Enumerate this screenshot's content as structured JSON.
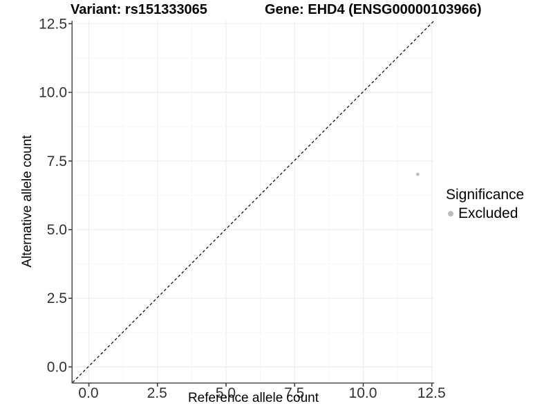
{
  "chart_data": {
    "type": "scatter",
    "title_variant": "Variant: rs151333065",
    "title_gene": "Gene: EHD4 (ENSG00000103966)",
    "xlabel": "Reference allele count",
    "ylabel": "Alternative allele count",
    "x_tick_labels": [
      "0.0",
      "2.5",
      "5.0",
      "7.5",
      "10.0",
      "12.5"
    ],
    "y_tick_labels": [
      "0.0",
      "2.5",
      "5.0",
      "7.5",
      "10.0",
      "12.5"
    ],
    "tick_values": [
      0,
      2.5,
      5,
      7.5,
      10,
      12.5
    ],
    "minor_tick_values": [
      1.25,
      3.75,
      6.25,
      8.75,
      11.25
    ],
    "xlim": [
      -0.58,
      12.595
    ],
    "ylim": [
      -0.58,
      12.595
    ],
    "grid": true,
    "legend_position": "right",
    "reference_line": {
      "type": "identity y=x",
      "style": "dashed",
      "color": "#000000"
    },
    "points": [
      {
        "x": 12,
        "y": 7,
        "significance": "Excluded"
      }
    ],
    "legend": {
      "title": "Significance",
      "entries": [
        {
          "label": "Excluded",
          "color": "#bcbcbc"
        }
      ]
    },
    "colors": {
      "background": "#ffffff",
      "point": "#bcbcbc",
      "grid_major": "#ebebeb",
      "grid_minor": "#f6f6f6",
      "axis_line": "#4d4d4d",
      "tick_mark": "#333333",
      "tick_text": "#303030",
      "dashed_line": "#000000"
    }
  }
}
